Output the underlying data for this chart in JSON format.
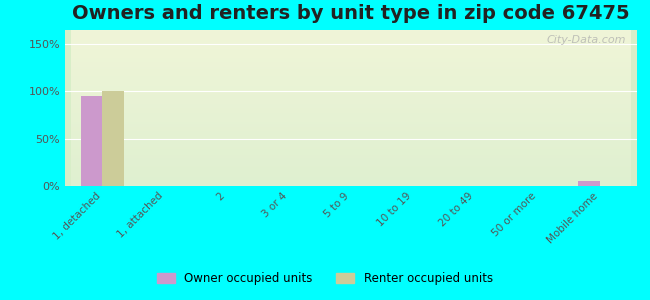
{
  "title": "Owners and renters by unit type in zip code 67475",
  "categories": [
    "1, detached",
    "1, attached",
    "2",
    "3 or 4",
    "5 to 9",
    "10 to 19",
    "20 to 49",
    "50 or more",
    "Mobile home"
  ],
  "owner_values": [
    95,
    0,
    0,
    0,
    0,
    0,
    0,
    0,
    5
  ],
  "renter_values": [
    100,
    0,
    0,
    0,
    0,
    0,
    0,
    0,
    0
  ],
  "owner_color": "#cc99cc",
  "renter_color": "#cccc99",
  "bg_color_top": "#ccffff",
  "bg_color_plot_top": "#e8f5e8",
  "bg_color_plot_bottom": "#f5f5e8",
  "yticks": [
    0,
    50,
    100,
    150
  ],
  "ylim": [
    0,
    165
  ],
  "bar_width": 0.35,
  "title_fontsize": 14,
  "watermark": "City-Data.com",
  "legend_labels": [
    "Owner occupied units",
    "Renter occupied units"
  ]
}
